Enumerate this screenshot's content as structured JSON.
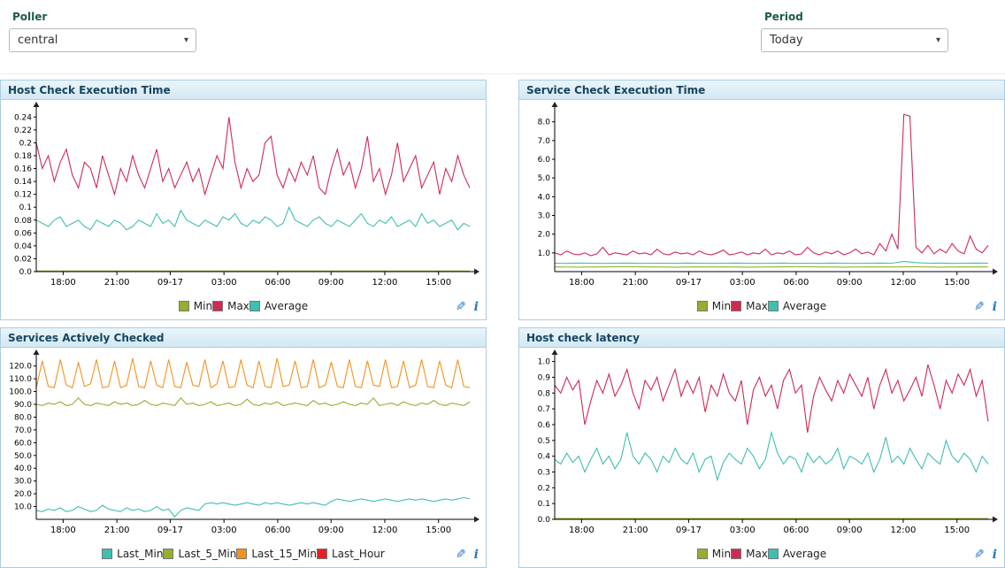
{
  "controls": {
    "poller_label": "Poller",
    "poller_value": "central",
    "period_label": "Period",
    "period_value": "Today"
  },
  "icons": {
    "edit": "✎",
    "info": "i"
  },
  "x_axis": {
    "ticks": [
      {
        "pos": 0.062,
        "label": "18:00"
      },
      {
        "pos": 0.186,
        "label": "21:00"
      },
      {
        "pos": 0.309,
        "label": "09-17"
      },
      {
        "pos": 0.433,
        "label": "03:00"
      },
      {
        "pos": 0.557,
        "label": "06:00"
      },
      {
        "pos": 0.68,
        "label": "09:00"
      },
      {
        "pos": 0.804,
        "label": "12:00"
      },
      {
        "pos": 0.928,
        "label": "15:00"
      }
    ]
  },
  "chart_data": [
    {
      "type": "line",
      "title": "Host Check Execution Time",
      "ylim": [
        0,
        0.25
      ],
      "yticks": [
        {
          "v": 0,
          "label": "0.0"
        },
        {
          "v": 0.02,
          "label": "0.02"
        },
        {
          "v": 0.04,
          "label": "0.04"
        },
        {
          "v": 0.06,
          "label": "0.06"
        },
        {
          "v": 0.08,
          "label": "0.08"
        },
        {
          "v": 0.1,
          "label": "0.1"
        },
        {
          "v": 0.12,
          "label": "0.12"
        },
        {
          "v": 0.14,
          "label": "0.14"
        },
        {
          "v": 0.16,
          "label": "0.16"
        },
        {
          "v": 0.18,
          "label": "0.18"
        },
        {
          "v": 0.2,
          "label": "0.2"
        },
        {
          "v": 0.22,
          "label": "0.22"
        },
        {
          "v": 0.24,
          "label": "0.24"
        }
      ],
      "series": [
        {
          "name": "Min",
          "color": "#94ae30",
          "const": 0.001
        },
        {
          "name": "Max",
          "color": "#cf2a52",
          "values": [
            0.2,
            0.16,
            0.18,
            0.14,
            0.17,
            0.19,
            0.15,
            0.13,
            0.17,
            0.16,
            0.13,
            0.18,
            0.15,
            0.12,
            0.16,
            0.14,
            0.18,
            0.15,
            0.13,
            0.16,
            0.19,
            0.14,
            0.16,
            0.13,
            0.15,
            0.17,
            0.14,
            0.16,
            0.12,
            0.15,
            0.18,
            0.16,
            0.24,
            0.17,
            0.13,
            0.16,
            0.14,
            0.15,
            0.2,
            0.21,
            0.15,
            0.13,
            0.16,
            0.14,
            0.17,
            0.15,
            0.18,
            0.13,
            0.12,
            0.16,
            0.19,
            0.15,
            0.17,
            0.13,
            0.16,
            0.21,
            0.14,
            0.16,
            0.12,
            0.15,
            0.2,
            0.14,
            0.16,
            0.18,
            0.13,
            0.15,
            0.17,
            0.12,
            0.16,
            0.14,
            0.18,
            0.15,
            0.13
          ]
        },
        {
          "name": "Average",
          "color": "#3fbfb2",
          "values": [
            0.08,
            0.075,
            0.07,
            0.08,
            0.085,
            0.07,
            0.075,
            0.08,
            0.07,
            0.065,
            0.08,
            0.075,
            0.07,
            0.08,
            0.075,
            0.065,
            0.07,
            0.08,
            0.075,
            0.07,
            0.09,
            0.075,
            0.08,
            0.07,
            0.095,
            0.08,
            0.075,
            0.07,
            0.08,
            0.075,
            0.07,
            0.085,
            0.08,
            0.09,
            0.075,
            0.07,
            0.08,
            0.075,
            0.085,
            0.08,
            0.07,
            0.075,
            0.1,
            0.08,
            0.075,
            0.07,
            0.08,
            0.085,
            0.075,
            0.07,
            0.08,
            0.075,
            0.07,
            0.08,
            0.09,
            0.075,
            0.07,
            0.08,
            0.075,
            0.085,
            0.07,
            0.075,
            0.08,
            0.07,
            0.09,
            0.075,
            0.08,
            0.07,
            0.075,
            0.08,
            0.065,
            0.075,
            0.07
          ]
        }
      ]
    },
    {
      "type": "line",
      "title": "Service Check Execution Time",
      "ylim": [
        0,
        8.6
      ],
      "yticks": [
        {
          "v": 1,
          "label": "1.0"
        },
        {
          "v": 2,
          "label": "2.0"
        },
        {
          "v": 3,
          "label": "3.0"
        },
        {
          "v": 4,
          "label": "4.0"
        },
        {
          "v": 5,
          "label": "5.0"
        },
        {
          "v": 6,
          "label": "6.0"
        },
        {
          "v": 7,
          "label": "7.0"
        },
        {
          "v": 8,
          "label": "8.0"
        }
      ],
      "series": [
        {
          "name": "Min",
          "color": "#94ae30",
          "values": [
            0.25,
            0.24,
            0.25,
            0.26,
            0.25,
            0.24,
            0.25,
            0.25,
            0.24,
            0.25,
            0.26,
            0.25,
            0.24,
            0.25,
            0.25,
            0.26,
            0.24,
            0.25,
            0.25
          ]
        },
        {
          "name": "Max",
          "color": "#cf2a52",
          "values": [
            1.0,
            0.9,
            1.1,
            0.95,
            0.9,
            1.0,
            0.85,
            0.95,
            1.3,
            0.9,
            1.0,
            0.95,
            0.9,
            1.1,
            0.95,
            1.0,
            0.9,
            1.2,
            0.95,
            0.9,
            1.05,
            0.95,
            1.0,
            0.9,
            1.1,
            0.95,
            0.9,
            1.0,
            1.15,
            0.9,
            0.95,
            1.05,
            0.9,
            1.0,
            0.95,
            1.2,
            0.9,
            1.0,
            0.95,
            1.1,
            0.9,
            0.95,
            1.3,
            1.0,
            0.9,
            1.05,
            0.95,
            1.1,
            0.9,
            1.0,
            1.2,
            0.95,
            1.05,
            0.9,
            1.5,
            1.1,
            2.0,
            1.2,
            8.4,
            8.3,
            1.3,
            1.0,
            1.4,
            0.95,
            1.2,
            1.0,
            1.5,
            1.1,
            0.95,
            1.9,
            1.2,
            1.0,
            1.4
          ]
        },
        {
          "name": "Average",
          "color": "#3fbfb2",
          "values": [
            0.45,
            0.44,
            0.46,
            0.45,
            0.44,
            0.45,
            0.46,
            0.44,
            0.45,
            0.45,
            0.44,
            0.46,
            0.45,
            0.44,
            0.45,
            0.46,
            0.45,
            0.44,
            0.45,
            0.46,
            0.44,
            0.45,
            0.44,
            0.46,
            0.45,
            0.44,
            0.45,
            0.46,
            0.45,
            0.55,
            0.48,
            0.45,
            0.46,
            0.44,
            0.45,
            0.46,
            0.45
          ]
        }
      ]
    },
    {
      "type": "line",
      "title": "Services Actively Checked",
      "ylim": [
        0,
        126
      ],
      "yticks": [
        {
          "v": 10,
          "label": "10.0"
        },
        {
          "v": 20,
          "label": "20.0"
        },
        {
          "v": 30,
          "label": "30.0"
        },
        {
          "v": 40,
          "label": "40.0"
        },
        {
          "v": 50,
          "label": "50.0"
        },
        {
          "v": 60,
          "label": "60.0"
        },
        {
          "v": 70,
          "label": "70.0"
        },
        {
          "v": 80,
          "label": "80.0"
        },
        {
          "v": 90,
          "label": "90.0"
        },
        {
          "v": 100,
          "label": "100.0"
        },
        {
          "v": 110,
          "label": "110.0"
        },
        {
          "v": 120,
          "label": "120.0"
        }
      ],
      "series": [
        {
          "name": "Last_Min",
          "color": "#3fbfb2",
          "values": [
            7,
            6,
            8,
            7,
            9,
            6,
            7,
            10,
            8,
            6,
            7,
            11,
            8,
            7,
            6,
            9,
            7,
            8,
            6,
            7,
            10,
            7,
            8,
            2,
            7,
            9,
            8,
            7,
            12,
            13,
            12,
            13,
            12,
            11,
            12,
            13,
            12,
            11,
            13,
            12,
            13,
            12,
            11,
            12,
            13,
            12,
            13,
            12,
            11,
            14,
            16,
            15,
            14,
            15,
            16,
            15,
            14,
            15,
            16,
            15,
            14,
            15,
            16,
            15,
            16,
            15,
            14,
            15,
            16,
            15,
            16,
            17,
            16
          ]
        },
        {
          "name": "Last_5_Min",
          "color": "#94ae30",
          "values": [
            90,
            89,
            91,
            90,
            92,
            89,
            90,
            95,
            90,
            89,
            91,
            90,
            89,
            92,
            90,
            91,
            89,
            90,
            93,
            90,
            89,
            91,
            90,
            89,
            95,
            90,
            91,
            89,
            90,
            92,
            89,
            90,
            91,
            89,
            90,
            94,
            90,
            89,
            91,
            90,
            92,
            89,
            90,
            91,
            90,
            89,
            93,
            90,
            91,
            89,
            90,
            92,
            90,
            89,
            91,
            90,
            95,
            89,
            90,
            91,
            89,
            92,
            90,
            89,
            91,
            90,
            93,
            90,
            89,
            91,
            90,
            89,
            92
          ]
        },
        {
          "name": "Last_15_Min",
          "color": "#f5921e",
          "values": [
            103,
            124,
            104,
            103,
            125,
            105,
            103,
            123,
            104,
            106,
            125,
            103,
            104,
            124,
            103,
            105,
            126,
            104,
            103,
            124,
            105,
            103,
            125,
            104,
            103,
            123,
            105,
            104,
            125,
            103,
            106,
            124,
            103,
            104,
            125,
            105,
            103,
            124,
            104,
            103,
            126,
            104,
            105,
            124,
            103,
            104,
            125,
            103,
            105,
            123,
            104,
            103,
            125,
            104,
            103,
            124,
            105,
            104,
            125,
            103,
            104,
            124,
            103,
            105,
            125,
            104,
            103,
            124,
            105,
            103,
            125,
            104,
            103
          ]
        },
        {
          "name": "Last_Hour",
          "color": "#e52020"
        }
      ]
    },
    {
      "type": "line",
      "title": "Host check latency",
      "ylim": [
        0,
        1.02
      ],
      "yticks": [
        {
          "v": 0,
          "label": "0.0"
        },
        {
          "v": 0.1,
          "label": "0.1"
        },
        {
          "v": 0.2,
          "label": "0.2"
        },
        {
          "v": 0.3,
          "label": "0.3"
        },
        {
          "v": 0.4,
          "label": "0.4"
        },
        {
          "v": 0.5,
          "label": "0.5"
        },
        {
          "v": 0.6,
          "label": "0.6"
        },
        {
          "v": 0.7,
          "label": "0.7"
        },
        {
          "v": 0.8,
          "label": "0.8"
        },
        {
          "v": 0.9,
          "label": "0.9"
        },
        {
          "v": 1.0,
          "label": "1.0"
        }
      ],
      "series": [
        {
          "name": "Min",
          "color": "#94ae30",
          "const": 0.005
        },
        {
          "name": "Max",
          "color": "#cf2a52",
          "values": [
            0.85,
            0.8,
            0.9,
            0.82,
            0.88,
            0.6,
            0.75,
            0.88,
            0.8,
            0.92,
            0.78,
            0.85,
            0.95,
            0.8,
            0.7,
            0.88,
            0.82,
            0.9,
            0.75,
            0.85,
            0.95,
            0.78,
            0.88,
            0.8,
            0.9,
            0.68,
            0.85,
            0.78,
            0.92,
            0.8,
            0.75,
            0.88,
            0.6,
            0.82,
            0.9,
            0.78,
            0.85,
            0.7,
            0.88,
            0.95,
            0.8,
            0.85,
            0.55,
            0.78,
            0.9,
            0.82,
            0.75,
            0.88,
            0.8,
            0.92,
            0.85,
            0.78,
            0.9,
            0.7,
            0.85,
            0.95,
            0.8,
            0.88,
            0.75,
            0.82,
            0.9,
            0.78,
            0.98,
            0.85,
            0.7,
            0.88,
            0.8,
            0.92,
            0.85,
            0.95,
            0.78,
            0.88,
            0.62
          ]
        },
        {
          "name": "Average",
          "color": "#3fbfb2",
          "values": [
            0.38,
            0.35,
            0.42,
            0.36,
            0.4,
            0.3,
            0.38,
            0.45,
            0.35,
            0.4,
            0.32,
            0.38,
            0.55,
            0.4,
            0.35,
            0.42,
            0.38,
            0.3,
            0.4,
            0.36,
            0.45,
            0.38,
            0.35,
            0.42,
            0.3,
            0.38,
            0.4,
            0.25,
            0.36,
            0.42,
            0.38,
            0.35,
            0.45,
            0.4,
            0.32,
            0.38,
            0.55,
            0.42,
            0.35,
            0.4,
            0.38,
            0.3,
            0.42,
            0.36,
            0.4,
            0.35,
            0.38,
            0.45,
            0.32,
            0.4,
            0.38,
            0.35,
            0.42,
            0.3,
            0.38,
            0.52,
            0.36,
            0.4,
            0.35,
            0.45,
            0.38,
            0.32,
            0.42,
            0.38,
            0.35,
            0.5,
            0.4,
            0.36,
            0.42,
            0.38,
            0.3,
            0.4,
            0.35
          ]
        }
      ]
    }
  ]
}
